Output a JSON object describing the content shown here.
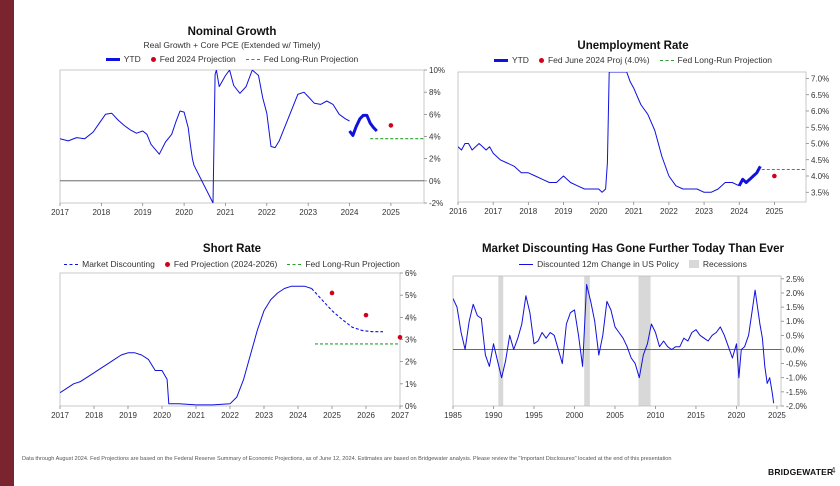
{
  "footnote": "Data through August 2024. Fed Projections are based on the Federal Reserve Summary of Economic Projections, as of June 12, 2024. Estimates are based on Bridgewater analysis. Please review the \"Important Disclosures\" located at the end of this presentation",
  "brand": "BRIDGEWATER",
  "page_number": "4",
  "colors": {
    "sidebar": "#7a2430",
    "series": "#1111dd",
    "projection": "#d0021b",
    "longrun": "#2ca02c",
    "recession": "#d8d8d8"
  },
  "chart_data": [
    {
      "id": "nominal-growth",
      "type": "line",
      "title": "Nominal Growth",
      "subtitle": "Real Growth + Core PCE (Extended w/ Timely)",
      "legend": [
        "YTD",
        "Fed 2024 Projection",
        "Fed Long-Run Projection"
      ],
      "xlim": [
        2017,
        2025.8
      ],
      "ylim": [
        -2,
        10
      ],
      "x_ticks": [
        2017,
        2018,
        2019,
        2020,
        2021,
        2022,
        2023,
        2024,
        2025
      ],
      "x_tick_labels": [
        "2017",
        "2018",
        "2019",
        "2020",
        "2021",
        "2022",
        "2023",
        "2024",
        "2025"
      ],
      "y_ticks": [
        -2,
        0,
        2,
        4,
        6,
        8,
        10
      ],
      "y_tick_labels": [
        "-2%",
        "0%",
        "2%",
        "4%",
        "6%",
        "8%",
        "10%"
      ],
      "zero_line": 0,
      "series": [
        {
          "style": "thin",
          "x": [
            2017.0,
            2017.2,
            2017.4,
            2017.6,
            2017.8,
            2017.95,
            2018.1,
            2018.25,
            2018.4,
            2018.55,
            2018.7,
            2018.85,
            2019.0,
            2019.1,
            2019.2,
            2019.4,
            2019.55,
            2019.7,
            2019.8,
            2019.9,
            2020.0,
            2020.1,
            2020.15,
            2020.2,
            2020.24,
            2020.7,
            2020.75,
            2020.78,
            2020.85,
            2021.0,
            2021.1,
            2021.2,
            2021.35,
            2021.5,
            2021.65,
            2021.8,
            2021.9,
            2022.0,
            2022.1,
            2022.2,
            2022.3,
            2022.45,
            2022.6,
            2022.75,
            2022.9,
            2023.0,
            2023.15,
            2023.3,
            2023.45,
            2023.6,
            2023.75,
            2023.9,
            2024.0
          ],
          "y": [
            3.8,
            3.6,
            3.9,
            3.8,
            4.4,
            5.2,
            6.0,
            6.1,
            5.5,
            5.0,
            4.6,
            4.3,
            4.5,
            4.2,
            3.3,
            2.4,
            3.5,
            4.2,
            5.3,
            6.3,
            6.2,
            4.8,
            3.3,
            2.0,
            1.4,
            -2,
            9.6,
            10,
            8.5,
            9.5,
            10,
            8.6,
            7.9,
            8.5,
            10,
            9.5,
            7.5,
            6.1,
            3.1,
            3.0,
            3.6,
            5.0,
            6.4,
            7.8,
            8.0,
            7.6,
            7.0,
            6.9,
            7.2,
            6.9,
            6.0,
            5.6,
            5.4
          ]
        },
        {
          "style": "bold",
          "x": [
            2024.0,
            2024.08,
            2024.16,
            2024.25,
            2024.33,
            2024.42,
            2024.5,
            2024.58,
            2024.66
          ],
          "y": [
            4.5,
            4.1,
            4.9,
            5.6,
            5.9,
            5.9,
            5.2,
            4.8,
            4.5
          ]
        }
      ],
      "projection_points": [
        {
          "x": 2025,
          "y": 5.0
        }
      ],
      "longrun_line": {
        "x": [
          2024.5,
          2025.8
        ],
        "y": 3.8
      }
    },
    {
      "id": "unemployment-rate",
      "type": "line",
      "title": "Unemployment Rate",
      "legend": [
        "YTD",
        "Fed June 2024 Proj (4.0%)",
        "Fed Long-Run Projection"
      ],
      "xlim": [
        2016,
        2025.9
      ],
      "ylim": [
        3.2,
        7.2
      ],
      "x_ticks": [
        2016,
        2017,
        2018,
        2019,
        2020,
        2021,
        2022,
        2023,
        2024,
        2025
      ],
      "x_tick_labels": [
        "2016",
        "2017",
        "2018",
        "2019",
        "2020",
        "2021",
        "2022",
        "2023",
        "2024",
        "2025"
      ],
      "y_ticks": [
        3.5,
        4.0,
        4.5,
        5.0,
        5.5,
        6.0,
        6.5,
        7.0
      ],
      "y_tick_labels": [
        "3.5%",
        "4.0%",
        "4.5%",
        "5.0%",
        "5.5%",
        "6.0%",
        "6.5%",
        "7.0%"
      ],
      "series": [
        {
          "style": "thin",
          "x": [
            2016.0,
            2016.1,
            2016.2,
            2016.3,
            2016.4,
            2016.5,
            2016.6,
            2016.7,
            2016.8,
            2016.9,
            2017.0,
            2017.2,
            2017.4,
            2017.6,
            2017.8,
            2018.0,
            2018.2,
            2018.4,
            2018.6,
            2018.8,
            2019.0,
            2019.2,
            2019.4,
            2019.6,
            2019.8,
            2020.0,
            2020.1,
            2020.2,
            2020.25,
            2020.3,
            2020.35,
            2020.4,
            2020.5,
            2020.6,
            2020.7,
            2020.8,
            2020.9,
            2021.0,
            2021.2,
            2021.4,
            2021.6,
            2021.8,
            2022.0,
            2022.2,
            2022.4,
            2022.6,
            2022.8,
            2023.0,
            2023.2,
            2023.4,
            2023.6,
            2023.8,
            2024.0
          ],
          "y": [
            4.9,
            4.8,
            5.0,
            5.0,
            4.8,
            4.9,
            5.0,
            4.9,
            4.8,
            4.9,
            4.7,
            4.5,
            4.4,
            4.3,
            4.1,
            4.1,
            4.0,
            3.9,
            3.8,
            3.8,
            4.0,
            3.8,
            3.7,
            3.6,
            3.6,
            3.6,
            3.5,
            3.6,
            4.4,
            7.2,
            7.2,
            7.2,
            7.2,
            7.2,
            7.2,
            7.2,
            6.9,
            6.7,
            6.2,
            5.9,
            5.4,
            4.6,
            4.0,
            3.7,
            3.6,
            3.6,
            3.6,
            3.5,
            3.5,
            3.6,
            3.8,
            3.8,
            3.7
          ]
        },
        {
          "style": "bold",
          "x": [
            2024.0,
            2024.1,
            2024.2,
            2024.3,
            2024.4,
            2024.5,
            2024.6
          ],
          "y": [
            3.7,
            3.9,
            3.8,
            3.9,
            4.0,
            4.1,
            4.3
          ]
        }
      ],
      "projection_points": [
        {
          "x": 2025,
          "y": 4.0
        }
      ],
      "longrun_line": {
        "x": [
          2024.5,
          2025.9
        ],
        "y": 4.2
      }
    },
    {
      "id": "short-rate",
      "type": "line",
      "title": "Short Rate",
      "legend": [
        "Market Discounting",
        "Fed Projection (2024-2026)",
        "Fed Long-Run Projection"
      ],
      "xlim": [
        2017,
        2027
      ],
      "ylim": [
        0,
        6
      ],
      "x_ticks": [
        2017,
        2018,
        2019,
        2020,
        2021,
        2022,
        2023,
        2024,
        2025,
        2026,
        2027
      ],
      "x_tick_labels": [
        "2017",
        "2018",
        "2019",
        "2020",
        "2021",
        "2022",
        "2023",
        "2024",
        "2025",
        "2026",
        "2027"
      ],
      "y_ticks": [
        0,
        1,
        2,
        3,
        4,
        5,
        6
      ],
      "y_tick_labels": [
        "0%",
        "1%",
        "2%",
        "3%",
        "4%",
        "5%",
        "6%"
      ],
      "series": [
        {
          "style": "thin",
          "x": [
            2017.0,
            2017.2,
            2017.4,
            2017.6,
            2017.8,
            2018.0,
            2018.2,
            2018.4,
            2018.6,
            2018.8,
            2019.0,
            2019.2,
            2019.4,
            2019.6,
            2019.8,
            2020.0,
            2020.15,
            2020.2,
            2020.5,
            2021.0,
            2021.5,
            2022.0,
            2022.2,
            2022.4,
            2022.6,
            2022.8,
            2023.0,
            2023.2,
            2023.4,
            2023.6,
            2023.8,
            2024.0,
            2024.2,
            2024.4
          ],
          "y": [
            0.6,
            0.8,
            1.0,
            1.1,
            1.3,
            1.5,
            1.7,
            1.9,
            2.1,
            2.3,
            2.4,
            2.4,
            2.3,
            2.1,
            1.6,
            1.6,
            1.2,
            0.1,
            0.1,
            0.05,
            0.05,
            0.1,
            0.4,
            1.2,
            2.3,
            3.4,
            4.3,
            4.8,
            5.1,
            5.3,
            5.4,
            5.4,
            5.4,
            5.3
          ]
        },
        {
          "style": "dashed",
          "x": [
            2024.4,
            2024.7,
            2025.0,
            2025.3,
            2025.6,
            2025.9,
            2026.2,
            2026.5
          ],
          "y": [
            5.3,
            4.8,
            4.3,
            3.9,
            3.55,
            3.4,
            3.35,
            3.35
          ]
        }
      ],
      "projection_points": [
        {
          "x": 2025,
          "y": 5.1
        },
        {
          "x": 2026,
          "y": 4.1
        },
        {
          "x": 2027,
          "y": 3.1
        }
      ],
      "longrun_line": {
        "x": [
          2024.5,
          2027
        ],
        "y": 2.8
      }
    },
    {
      "id": "market-discounting",
      "type": "line",
      "title": "Market Discounting Has Gone Further Today Than Ever",
      "legend": [
        "Discounted 12m Change in US Policy",
        "Recessions"
      ],
      "xlim": [
        1985,
        2025.5
      ],
      "ylim": [
        -2,
        2.6
      ],
      "x_ticks": [
        1985,
        1990,
        1995,
        2000,
        2005,
        2010,
        2015,
        2020,
        2025
      ],
      "x_tick_labels": [
        "1985",
        "1990",
        "1995",
        "2000",
        "2005",
        "2010",
        "2015",
        "2020",
        "2025"
      ],
      "y_ticks": [
        -2.0,
        -1.5,
        -1.0,
        -0.5,
        0.0,
        0.5,
        1.0,
        1.5,
        2.0,
        2.5
      ],
      "y_tick_labels": [
        "-2.0%",
        "-1.5%",
        "-1.0%",
        "-0.5%",
        "0.0%",
        "0.5%",
        "1.0%",
        "1.5%",
        "2.0%",
        "2.5%"
      ],
      "zero_line": 0,
      "recessions": [
        [
          1990.6,
          1991.2
        ],
        [
          2001.2,
          2001.9
        ],
        [
          2007.9,
          2009.4
        ],
        [
          2020.1,
          2020.4
        ]
      ],
      "series": [
        {
          "style": "thin",
          "x": [
            1985.0,
            1985.5,
            1986.0,
            1986.5,
            1987.0,
            1987.5,
            1988.0,
            1988.5,
            1989.0,
            1989.5,
            1990.0,
            1990.5,
            1991.0,
            1991.5,
            1992.0,
            1992.5,
            1993.0,
            1993.5,
            1994.0,
            1994.5,
            1995.0,
            1995.5,
            1996.0,
            1996.5,
            1997.0,
            1997.5,
            1998.0,
            1998.5,
            1999.0,
            1999.5,
            2000.0,
            2000.5,
            2001.0,
            2001.5,
            2002.0,
            2002.5,
            2003.0,
            2003.5,
            2004.0,
            2004.5,
            2005.0,
            2005.5,
            2006.0,
            2006.5,
            2007.0,
            2007.5,
            2008.0,
            2008.5,
            2009.0,
            2009.5,
            2010.0,
            2010.5,
            2011.0,
            2011.5,
            2012.0,
            2012.5,
            2013.0,
            2013.5,
            2014.0,
            2014.5,
            2015.0,
            2015.5,
            2016.0,
            2016.5,
            2017.0,
            2017.5,
            2018.0,
            2018.5,
            2019.0,
            2019.5,
            2020.0,
            2020.3,
            2020.6,
            2021.0,
            2021.5,
            2022.0,
            2022.3,
            2022.6,
            2022.9,
            2023.2,
            2023.5,
            2023.8,
            2024.1,
            2024.4,
            2024.6
          ],
          "y": [
            1.8,
            1.5,
            0.6,
            0.0,
            1.0,
            1.6,
            1.2,
            1.1,
            -0.2,
            -0.6,
            0.2,
            -0.4,
            -1.0,
            -0.4,
            0.5,
            0.0,
            0.4,
            0.9,
            1.9,
            1.3,
            0.2,
            0.3,
            0.6,
            0.4,
            0.6,
            0.5,
            0.0,
            -0.5,
            0.9,
            1.3,
            1.4,
            0.5,
            -0.6,
            2.3,
            1.7,
            1.0,
            -0.2,
            0.5,
            1.7,
            1.4,
            0.8,
            0.6,
            0.4,
            0.1,
            -0.3,
            -0.5,
            -1.0,
            -0.2,
            0.2,
            0.9,
            0.6,
            0.1,
            0.3,
            0.1,
            0.0,
            0.1,
            0.1,
            0.4,
            0.3,
            0.6,
            0.7,
            0.5,
            0.4,
            0.3,
            0.5,
            0.6,
            0.8,
            0.5,
            0.1,
            -0.3,
            0.2,
            -1.0,
            0.0,
            0.1,
            0.5,
            1.5,
            2.1,
            1.5,
            0.9,
            0.4,
            -0.6,
            -1.2,
            -1.0,
            -1.5,
            -1.9
          ]
        }
      ]
    }
  ]
}
